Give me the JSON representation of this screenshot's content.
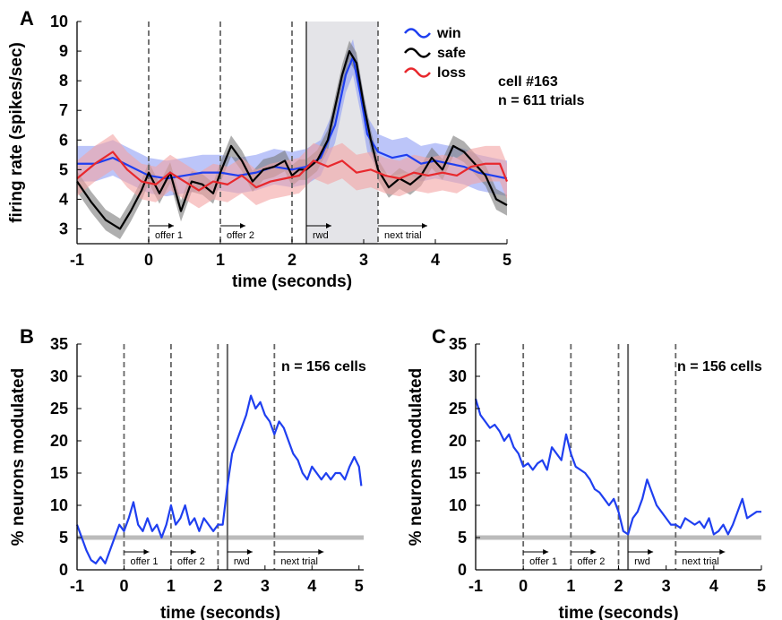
{
  "colors": {
    "win": "#1f3ff0",
    "safe": "#000000",
    "loss": "#e8282d",
    "win_band": "#8f9ff5",
    "safe_band": "#7a7a7a",
    "loss_band": "#f4a4a4",
    "shade": "#e4e4e8",
    "baseline": "#bbbbbb"
  },
  "chart_data": [
    {
      "panel": "A",
      "type": "line",
      "xlabel": "time (seconds)",
      "ylabel": "firing rate (spikes/sec)",
      "xlim": [
        -1,
        5
      ],
      "ylim": [
        2.5,
        10
      ],
      "xticks": [
        "-1",
        "0",
        "1",
        "2",
        "3",
        "4",
        "5"
      ],
      "yticks": [
        "3",
        "4",
        "5",
        "6",
        "7",
        "8",
        "9",
        "10"
      ],
      "annotation_lines": [
        "cell #163",
        "n = 611 trials"
      ],
      "event_markers": [
        {
          "x": 0,
          "label": "offer 1",
          "style": "dashed"
        },
        {
          "x": 1,
          "label": "offer 2",
          "style": "dashed"
        },
        {
          "x": 2,
          "label": "",
          "style": "dashed"
        },
        {
          "x": 2.2,
          "label": "rwd",
          "style": "solid"
        },
        {
          "x": 3.2,
          "label": "next trial",
          "style": "dashed"
        }
      ],
      "shaded_region": [
        2.2,
        3.2
      ],
      "legend": [
        "win",
        "safe",
        "loss"
      ],
      "legend_position": "top-right",
      "series": [
        {
          "name": "win",
          "x": [
            -1,
            -0.75,
            -0.5,
            -0.25,
            0,
            0.25,
            0.5,
            0.75,
            1,
            1.25,
            1.5,
            1.75,
            2,
            2.2,
            2.4,
            2.6,
            2.75,
            2.85,
            2.95,
            3.05,
            3.2,
            3.4,
            3.6,
            3.8,
            4,
            4.2,
            4.4,
            4.6,
            4.8,
            5
          ],
          "y": [
            5.2,
            5.2,
            5.4,
            5.1,
            4.8,
            4.7,
            4.8,
            4.9,
            4.9,
            4.8,
            4.9,
            5.1,
            5.0,
            5.1,
            5.4,
            6.5,
            8.2,
            8.8,
            7.6,
            6.2,
            5.6,
            5.4,
            5.5,
            5.2,
            5.3,
            5.2,
            5.1,
            4.9,
            4.8,
            4.7
          ],
          "band": 0.6
        },
        {
          "name": "safe",
          "x": [
            -1,
            -0.8,
            -0.6,
            -0.4,
            -0.25,
            -0.1,
            0,
            0.15,
            0.3,
            0.45,
            0.6,
            0.75,
            0.9,
            1,
            1.15,
            1.3,
            1.45,
            1.6,
            1.75,
            1.9,
            2,
            2.1,
            2.2,
            2.35,
            2.5,
            2.6,
            2.7,
            2.8,
            2.9,
            3,
            3.1,
            3.2,
            3.35,
            3.5,
            3.65,
            3.8,
            3.95,
            4.1,
            4.25,
            4.4,
            4.55,
            4.7,
            4.85,
            5
          ],
          "y": [
            4.6,
            3.9,
            3.3,
            3.0,
            3.6,
            4.3,
            4.9,
            4.2,
            4.9,
            3.6,
            4.6,
            4.5,
            4.2,
            4.9,
            5.8,
            5.3,
            4.6,
            5.0,
            5.1,
            5.3,
            4.8,
            5.0,
            5.0,
            5.3,
            6.0,
            7.1,
            8.2,
            9.0,
            8.6,
            7.2,
            6.0,
            5.0,
            4.4,
            4.7,
            4.5,
            4.8,
            5.4,
            5.0,
            5.8,
            5.6,
            5.2,
            4.8,
            4.0,
            3.8
          ],
          "band": 0.35
        },
        {
          "name": "loss",
          "x": [
            -1,
            -0.75,
            -0.5,
            -0.3,
            -0.1,
            0.1,
            0.3,
            0.5,
            0.7,
            0.9,
            1.1,
            1.3,
            1.5,
            1.7,
            1.9,
            2.1,
            2.3,
            2.5,
            2.7,
            2.9,
            3.1,
            3.3,
            3.5,
            3.7,
            3.9,
            4.1,
            4.3,
            4.5,
            4.7,
            4.9,
            5
          ],
          "y": [
            4.7,
            5.2,
            5.6,
            5.0,
            4.6,
            4.5,
            4.9,
            4.6,
            4.3,
            4.6,
            4.5,
            4.8,
            4.4,
            4.6,
            4.7,
            4.8,
            5.3,
            5.1,
            5.3,
            4.9,
            5.0,
            4.8,
            4.7,
            4.9,
            4.8,
            4.9,
            4.8,
            5.1,
            5.2,
            5.2,
            4.6
          ],
          "band": 0.6
        }
      ]
    },
    {
      "panel": "B",
      "type": "line",
      "xlabel": "time (seconds)",
      "ylabel": "% neurons modulated",
      "xlim": [
        -1,
        5.1
      ],
      "ylim": [
        0,
        35
      ],
      "xticks": [
        "-1",
        "0",
        "1",
        "2",
        "3",
        "4",
        "5"
      ],
      "yticks": [
        "0",
        "5",
        "10",
        "15",
        "20",
        "25",
        "30",
        "35"
      ],
      "annotation_lines": [
        "n = 156 cells"
      ],
      "baseline": 5,
      "event_markers": [
        {
          "x": 0,
          "label": "offer 1",
          "style": "dashed"
        },
        {
          "x": 1,
          "label": "offer 2",
          "style": "dashed"
        },
        {
          "x": 2,
          "label": "",
          "style": "dashed"
        },
        {
          "x": 2.2,
          "label": "rwd",
          "style": "solid"
        },
        {
          "x": 3.2,
          "label": "next trial",
          "style": "dashed"
        }
      ],
      "series": [
        {
          "name": "",
          "x": [
            -1,
            -0.9,
            -0.8,
            -0.7,
            -0.6,
            -0.5,
            -0.4,
            -0.3,
            -0.2,
            -0.1,
            0,
            0.1,
            0.2,
            0.3,
            0.4,
            0.5,
            0.6,
            0.7,
            0.8,
            0.9,
            1,
            1.1,
            1.2,
            1.3,
            1.4,
            1.5,
            1.6,
            1.7,
            1.8,
            1.9,
            2,
            2.1,
            2.2,
            2.3,
            2.4,
            2.5,
            2.6,
            2.7,
            2.8,
            2.9,
            3,
            3.1,
            3.2,
            3.3,
            3.4,
            3.5,
            3.6,
            3.7,
            3.8,
            3.9,
            4,
            4.1,
            4.2,
            4.3,
            4.4,
            4.5,
            4.6,
            4.7,
            4.8,
            4.9,
            5,
            5.05
          ],
          "y": [
            7,
            5,
            3,
            1.5,
            1,
            2,
            1,
            3,
            5,
            7,
            6,
            8,
            10.5,
            7,
            6,
            8,
            6,
            7,
            5,
            7,
            10,
            7,
            8,
            10,
            7,
            8,
            6,
            8,
            7,
            6,
            7,
            7,
            13,
            18,
            20,
            22,
            24,
            27,
            25,
            26,
            24,
            23,
            21,
            23,
            22,
            20,
            18,
            17,
            15,
            14,
            16,
            15,
            14,
            15,
            14,
            15,
            15,
            14,
            16,
            17.5,
            16,
            13
          ]
        }
      ]
    },
    {
      "panel": "C",
      "type": "line",
      "xlabel": "time (seconds)",
      "ylabel": "% neurons modulated",
      "xlim": [
        -1,
        5
      ],
      "ylim": [
        0,
        35
      ],
      "xticks": [
        "-1",
        "0",
        "1",
        "2",
        "3",
        "4",
        "5"
      ],
      "yticks": [
        "0",
        "5",
        "10",
        "15",
        "20",
        "25",
        "30",
        "35"
      ],
      "annotation_lines": [
        "n = 156 cells"
      ],
      "baseline": 5,
      "event_markers": [
        {
          "x": 0,
          "label": "offer 1",
          "style": "dashed"
        },
        {
          "x": 1,
          "label": "offer 2",
          "style": "dashed"
        },
        {
          "x": 2,
          "label": "",
          "style": "dashed"
        },
        {
          "x": 2.2,
          "label": "rwd",
          "style": "solid"
        },
        {
          "x": 3.2,
          "label": "next trial",
          "style": "dashed"
        }
      ],
      "series": [
        {
          "name": "",
          "x": [
            -1,
            -0.9,
            -0.8,
            -0.7,
            -0.6,
            -0.5,
            -0.4,
            -0.3,
            -0.2,
            -0.1,
            0,
            0.1,
            0.2,
            0.3,
            0.4,
            0.5,
            0.6,
            0.7,
            0.8,
            0.9,
            1,
            1.1,
            1.2,
            1.3,
            1.4,
            1.5,
            1.6,
            1.7,
            1.8,
            1.9,
            2,
            2.1,
            2.2,
            2.3,
            2.4,
            2.5,
            2.6,
            2.7,
            2.8,
            2.9,
            3,
            3.1,
            3.2,
            3.3,
            3.4,
            3.5,
            3.6,
            3.7,
            3.8,
            3.9,
            4,
            4.1,
            4.2,
            4.3,
            4.4,
            4.5,
            4.6,
            4.7,
            4.8,
            4.9,
            5
          ],
          "y": [
            26.5,
            24,
            23,
            22,
            22.5,
            21.5,
            20,
            21,
            19,
            18,
            16,
            16.5,
            15.5,
            16.5,
            17,
            15.5,
            19,
            18,
            17,
            21,
            18,
            16,
            15.5,
            15,
            14,
            12.5,
            12,
            11,
            10,
            11,
            9,
            6,
            5.5,
            8,
            9,
            11,
            14,
            12,
            10,
            9,
            8,
            7,
            7,
            6.5,
            8,
            7.5,
            7,
            7.5,
            6.5,
            8,
            5.5,
            6,
            7,
            5.5,
            7,
            9,
            11,
            8,
            8.5,
            9,
            9
          ]
        }
      ]
    }
  ]
}
